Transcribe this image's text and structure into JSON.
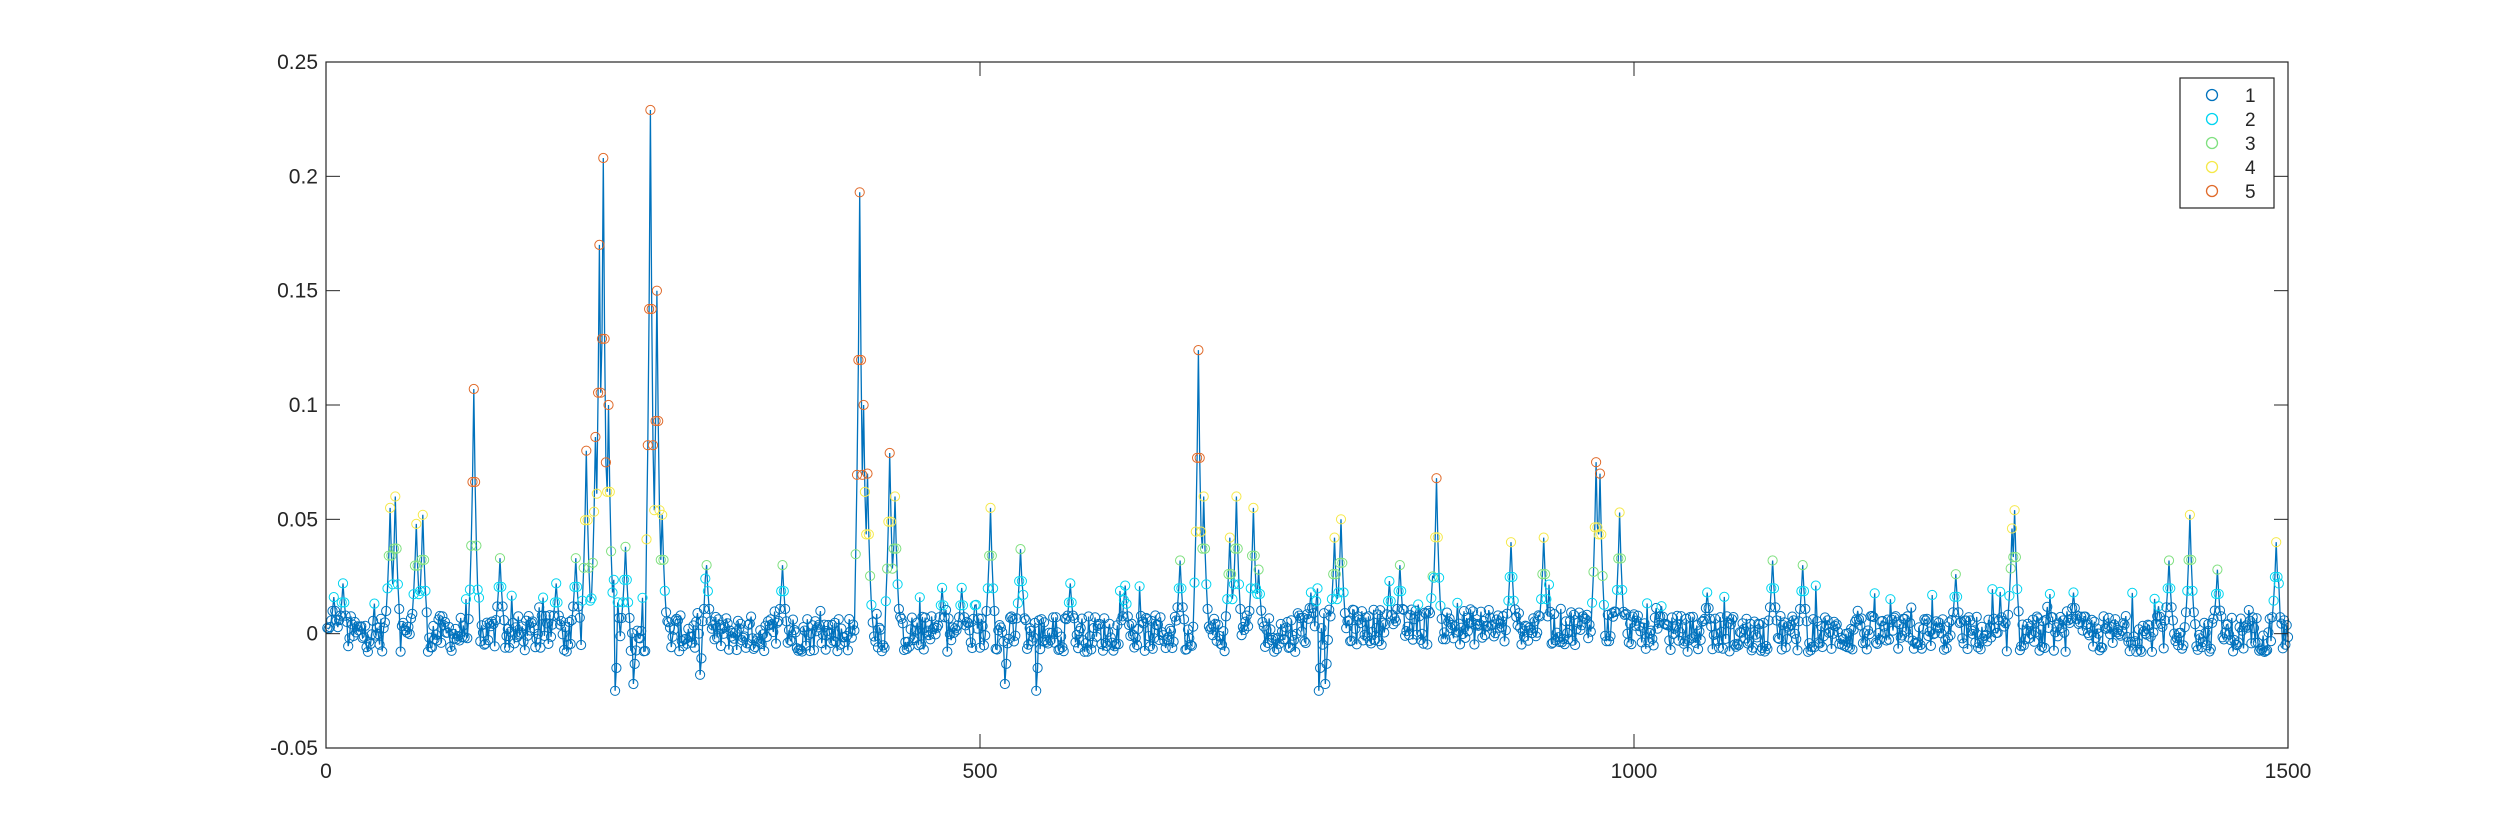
{
  "chart_data": {
    "type": "line",
    "title": "",
    "xlabel": "",
    "ylabel": "",
    "xlim": [
      0,
      1500
    ],
    "ylim": [
      -0.05,
      0.25
    ],
    "x_ticks": [
      0,
      500,
      1000,
      1500
    ],
    "x_tick_labels": [
      "0",
      "500",
      "1000",
      "1500"
    ],
    "y_ticks": [
      -0.05,
      0,
      0.05,
      0.1,
      0.15,
      0.2,
      0.25
    ],
    "y_tick_labels": [
      "-0.05",
      "0",
      "0.05",
      "0.1",
      "0.15",
      "0.2",
      "0.25"
    ],
    "grid": false,
    "box": true,
    "legend_position": "top-right",
    "line_color": "#0072BD",
    "marker": "circle",
    "legend": [
      {
        "label": "1",
        "color": "#0072BD"
      },
      {
        "label": "2",
        "color": "#00D4F0"
      },
      {
        "label": "3",
        "color": "#7FE07F"
      },
      {
        "label": "4",
        "color": "#F5E94A"
      },
      {
        "label": "5",
        "color": "#E06A2A"
      }
    ],
    "category_thresholds": [
      0.012,
      0.025,
      0.04,
      0.065
    ],
    "x_count": 1500,
    "baseline": [
      0,
      0.004
    ],
    "noise_amplitude": 0.008,
    "peaks": [
      {
        "x": 5,
        "y": 0.016
      },
      {
        "x": 12,
        "y": 0.022
      },
      {
        "x": 48,
        "y": 0.055
      },
      {
        "x": 52,
        "y": 0.06
      },
      {
        "x": 68,
        "y": 0.048
      },
      {
        "x": 73,
        "y": 0.052
      },
      {
        "x": 112,
        "y": 0.107
      },
      {
        "x": 132,
        "y": 0.033
      },
      {
        "x": 175,
        "y": 0.022
      },
      {
        "x": 190,
        "y": 0.033
      },
      {
        "x": 198,
        "y": 0.08
      },
      {
        "x": 205,
        "y": 0.086
      },
      {
        "x": 208,
        "y": 0.17
      },
      {
        "x": 211,
        "y": 0.208
      },
      {
        "x": 215,
        "y": 0.1
      },
      {
        "x": 220,
        "y": 0.038
      },
      {
        "x": 228,
        "y": 0.038
      },
      {
        "x": 247,
        "y": 0.229
      },
      {
        "x": 252,
        "y": 0.15
      },
      {
        "x": 256,
        "y": 0.052
      },
      {
        "x": 290,
        "y": 0.03
      },
      {
        "x": 348,
        "y": 0.03
      },
      {
        "x": 407,
        "y": 0.193
      },
      {
        "x": 410,
        "y": 0.1
      },
      {
        "x": 413,
        "y": 0.07
      },
      {
        "x": 430,
        "y": 0.079
      },
      {
        "x": 434,
        "y": 0.06
      },
      {
        "x": 470,
        "y": 0.02
      },
      {
        "x": 485,
        "y": 0.02
      },
      {
        "x": 507,
        "y": 0.055
      },
      {
        "x": 530,
        "y": 0.037
      },
      {
        "x": 568,
        "y": 0.022
      },
      {
        "x": 610,
        "y": 0.021
      },
      {
        "x": 652,
        "y": 0.032
      },
      {
        "x": 666,
        "y": 0.124
      },
      {
        "x": 670,
        "y": 0.06
      },
      {
        "x": 690,
        "y": 0.042
      },
      {
        "x": 695,
        "y": 0.06
      },
      {
        "x": 708,
        "y": 0.055
      },
      {
        "x": 712,
        "y": 0.028
      },
      {
        "x": 752,
        "y": 0.018
      },
      {
        "x": 770,
        "y": 0.042
      },
      {
        "x": 775,
        "y": 0.05
      },
      {
        "x": 812,
        "y": 0.023
      },
      {
        "x": 820,
        "y": 0.03
      },
      {
        "x": 845,
        "y": 0.025
      },
      {
        "x": 848,
        "y": 0.068
      },
      {
        "x": 905,
        "y": 0.04
      },
      {
        "x": 930,
        "y": 0.042
      },
      {
        "x": 970,
        "y": 0.075
      },
      {
        "x": 973,
        "y": 0.07
      },
      {
        "x": 988,
        "y": 0.053
      },
      {
        "x": 1020,
        "y": 0.012
      },
      {
        "x": 1055,
        "y": 0.018
      },
      {
        "x": 1105,
        "y": 0.032
      },
      {
        "x": 1128,
        "y": 0.03
      },
      {
        "x": 1170,
        "y": 0.01
      },
      {
        "x": 1245,
        "y": 0.026
      },
      {
        "x": 1288,
        "y": 0.046
      },
      {
        "x": 1290,
        "y": 0.054
      },
      {
        "x": 1335,
        "y": 0.018
      },
      {
        "x": 1400,
        "y": 0.012
      },
      {
        "x": 1408,
        "y": 0.032
      },
      {
        "x": 1424,
        "y": 0.052
      },
      {
        "x": 1445,
        "y": 0.028
      },
      {
        "x": 1490,
        "y": 0.04
      }
    ],
    "dips": [
      {
        "x": 220,
        "y": -0.025
      },
      {
        "x": 234,
        "y": -0.022
      },
      {
        "x": 285,
        "y": -0.018
      },
      {
        "x": 518,
        "y": -0.022
      },
      {
        "x": 542,
        "y": -0.025
      },
      {
        "x": 758,
        "y": -0.025
      },
      {
        "x": 763,
        "y": -0.022
      }
    ]
  }
}
